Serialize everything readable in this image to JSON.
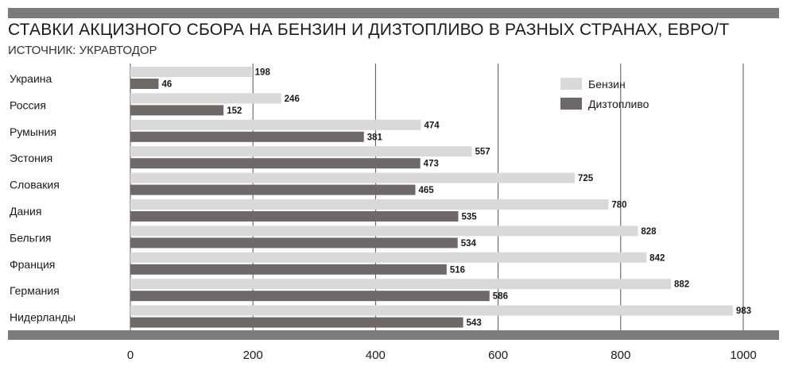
{
  "title": "СТАВКИ АКЦИЗНОГО СБОРА НА БЕНЗИН И ДИЗТОПЛИВО В РАЗНЫХ СТРАНАХ, ЕВРО/Т",
  "source": "ИСТОЧНИК: УКРАВТОДОР",
  "colors": {
    "petrol": "#d9d9d9",
    "diesel": "#6e6868",
    "axis_band": "#7b7b7b",
    "grid": "#555555"
  },
  "chart_data": {
    "type": "bar",
    "orientation": "horizontal",
    "categories": [
      "Украина",
      "Россия",
      "Румыния",
      "Эстония",
      "Словакия",
      "Дания",
      "Бельгия",
      "Франция",
      "Германия",
      "Нидерланды"
    ],
    "series": [
      {
        "name": "Бензин",
        "values": [
          198,
          246,
          474,
          557,
          725,
          780,
          828,
          842,
          882,
          983
        ]
      },
      {
        "name": "Дизтопливо",
        "values": [
          46,
          152,
          381,
          473,
          465,
          535,
          534,
          516,
          586,
          543
        ]
      }
    ],
    "xlim": [
      0,
      1000
    ],
    "xticks": [
      "0",
      "200",
      "400",
      "600",
      "800",
      "1000"
    ],
    "grid": true,
    "legend_position": "top-right"
  }
}
